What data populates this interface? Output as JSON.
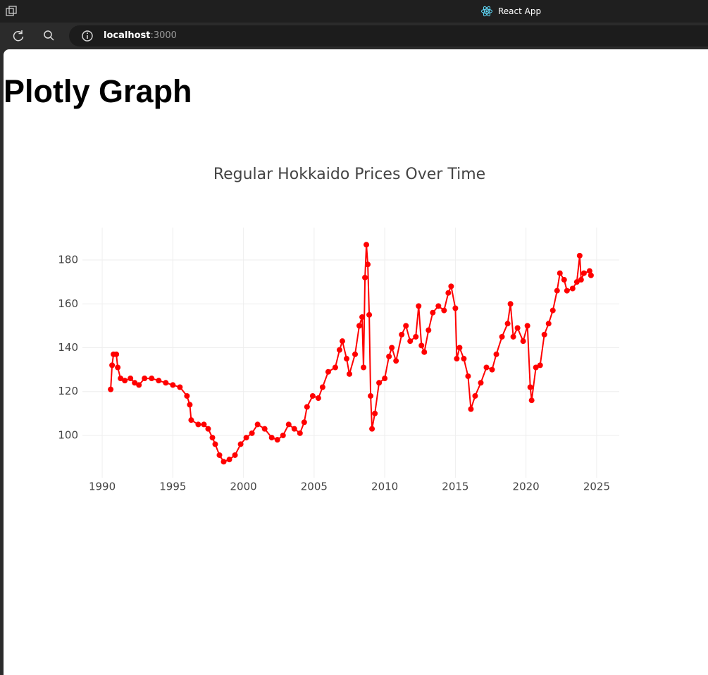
{
  "browser": {
    "tab_title": "React App",
    "url_host": "localhost",
    "url_port": ":3000"
  },
  "page": {
    "heading": "Plotly Graph"
  },
  "chart_data": {
    "type": "line",
    "title": "Regular Hokkaido Prices Over Time",
    "mode": "lines+markers",
    "grid": true,
    "xlim": [
      1988.6,
      2026.6
    ],
    "xticks": [
      1990,
      1995,
      2000,
      2005,
      2010,
      2015,
      2020,
      2025
    ],
    "ylim": [
      80.7,
      194.8
    ],
    "yticks": [
      100,
      120,
      140,
      160,
      180
    ],
    "series": [
      {
        "color": "#ff0000",
        "x": [
          1990.6,
          1990.7,
          1990.8,
          1991.0,
          1991.1,
          1991.3,
          1991.6,
          1992.0,
          1992.3,
          1992.6,
          1993.0,
          1993.5,
          1994.0,
          1994.5,
          1995.0,
          1995.5,
          1996.0,
          1996.2,
          1996.3,
          1996.8,
          1997.2,
          1997.5,
          1997.8,
          1998.0,
          1998.3,
          1998.6,
          1999.0,
          1999.4,
          1999.8,
          2000.2,
          2000.6,
          2001.0,
          2001.5,
          2002.0,
          2002.4,
          2002.8,
          2003.2,
          2003.6,
          2004.0,
          2004.3,
          2004.5,
          2004.9,
          2005.3,
          2005.6,
          2006.0,
          2006.5,
          2006.8,
          2007.0,
          2007.3,
          2007.5,
          2007.9,
          2008.2,
          2008.4,
          2008.5,
          2008.6,
          2008.7,
          2008.8,
          2008.9,
          2009.0,
          2009.1,
          2009.3,
          2009.6,
          2010.0,
          2010.3,
          2010.5,
          2010.8,
          2011.2,
          2011.5,
          2011.8,
          2012.2,
          2012.4,
          2012.6,
          2012.8,
          2013.1,
          2013.4,
          2013.8,
          2014.2,
          2014.5,
          2014.7,
          2015.0,
          2015.1,
          2015.3,
          2015.6,
          2015.9,
          2016.1,
          2016.4,
          2016.8,
          2017.2,
          2017.6,
          2017.9,
          2018.3,
          2018.7,
          2018.9,
          2019.1,
          2019.4,
          2019.8,
          2020.1,
          2020.3,
          2020.4,
          2020.7,
          2021.0,
          2021.3,
          2021.6,
          2021.9,
          2022.2,
          2022.4,
          2022.7,
          2022.9,
          2023.3,
          2023.6,
          2023.8,
          2023.9,
          2024.1,
          2024.5,
          2024.6
        ],
        "values": [
          121,
          132,
          137,
          137,
          131,
          126,
          125,
          126,
          124,
          123,
          126,
          126,
          125,
          124,
          123,
          122,
          118,
          114,
          107,
          105,
          105,
          103,
          99,
          96,
          91,
          88,
          89,
          91,
          96,
          99,
          101,
          105,
          103,
          99,
          98,
          100,
          105,
          103,
          101,
          106,
          113,
          118,
          117,
          122,
          129,
          131,
          139,
          143,
          135,
          128,
          137,
          150,
          154,
          131,
          172,
          187,
          178,
          155,
          118,
          103,
          110,
          124,
          126,
          136,
          140,
          134,
          146,
          150,
          143,
          145,
          159,
          141,
          138,
          148,
          156,
          159,
          157,
          165,
          168,
          158,
          135,
          140,
          135,
          127,
          112,
          118,
          124,
          131,
          130,
          137,
          145,
          151,
          160,
          145,
          149,
          143,
          150,
          122,
          116,
          131,
          132,
          146,
          151,
          157,
          166,
          174,
          171,
          166,
          167,
          170,
          182,
          171,
          174,
          175,
          173
        ]
      }
    ]
  }
}
